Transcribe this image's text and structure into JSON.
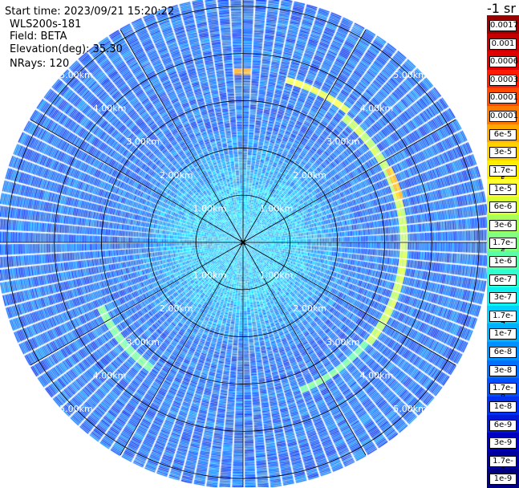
{
  "header": {
    "start_time": "Start time: 2023/09/21 15:20:22",
    "instrument": "WLS200s-181",
    "field": "Field: BETA",
    "elevation": "Elevation(deg): 35.30",
    "nrays": "NRays: 120"
  },
  "colorbar": {
    "unit_label": "-1 sr",
    "labels": [
      "0.0017",
      "0.001",
      "0.0006",
      "0.0003",
      "0.00017",
      "0.0001",
      "6e-5",
      "3e-5",
      "1.7e-5",
      "1e-5",
      "6e-6",
      "3e-6",
      "1.7e-6",
      "1e-6",
      "6e-7",
      "3e-7",
      "1.7e-7",
      "1e-7",
      "6e-8",
      "3e-8",
      "1.7e-8",
      "1e-8",
      "6e-9",
      "3e-9",
      "1.7e-9",
      "1e-9"
    ],
    "colors": [
      "#9a0000",
      "#c40000",
      "#e00000",
      "#ff1a00",
      "#ff4a00",
      "#ff7a00",
      "#ffa800",
      "#ffd000",
      "#ffee00",
      "#ffff30",
      "#d8ff30",
      "#a8ff58",
      "#80ff80",
      "#58ffa8",
      "#30ffd0",
      "#10f0f0",
      "#00d0ff",
      "#00b0ff",
      "#0090ff",
      "#0070ff",
      "#0050ff",
      "#0030f0",
      "#0018d8",
      "#0000c0",
      "#0000a0",
      "#000080"
    ]
  },
  "range_labels": [
    "1.00km",
    "2.00km",
    "3.00km",
    "4.00km",
    "5.00km"
  ],
  "chart_data": {
    "type": "heatmap",
    "projection": "polar",
    "field": "BETA",
    "instrument": "WLS200s-181",
    "elevation_deg": 35.3,
    "nrays": 120,
    "range_rings_km": [
      1,
      2,
      3,
      4,
      5
    ],
    "max_range_km": 5.2,
    "colorscale": "log",
    "value_range": [
      1e-09,
      0.0017
    ],
    "background_value": 3e-08,
    "near_value": 1.7e-07,
    "features": [
      {
        "description": "high-backscatter ring segment",
        "range_km": 3.55,
        "azimuth_deg": [
          15,
          40
        ],
        "value": 1e-05
      },
      {
        "description": "high-backscatter ring segment",
        "range_km": 3.4,
        "azimuth_deg": [
          40,
          130
        ],
        "value": 6e-06
      },
      {
        "description": "high-backscatter ring segment",
        "range_km": 3.35,
        "azimuth_deg": [
          130,
          160
        ],
        "value": 1.7e-06
      },
      {
        "description": "high-backscatter ring segment",
        "range_km": 3.3,
        "azimuth_deg": [
          215,
          245
        ],
        "value": 1.7e-06
      },
      {
        "description": "hot spot",
        "range_km": 3.6,
        "azimuth_deg": [
          -2,
          4
        ],
        "value": 0.0001
      },
      {
        "description": "hot spot",
        "range_km": 3.45,
        "azimuth_deg": [
          62,
          75
        ],
        "value": 6e-05
      }
    ]
  }
}
